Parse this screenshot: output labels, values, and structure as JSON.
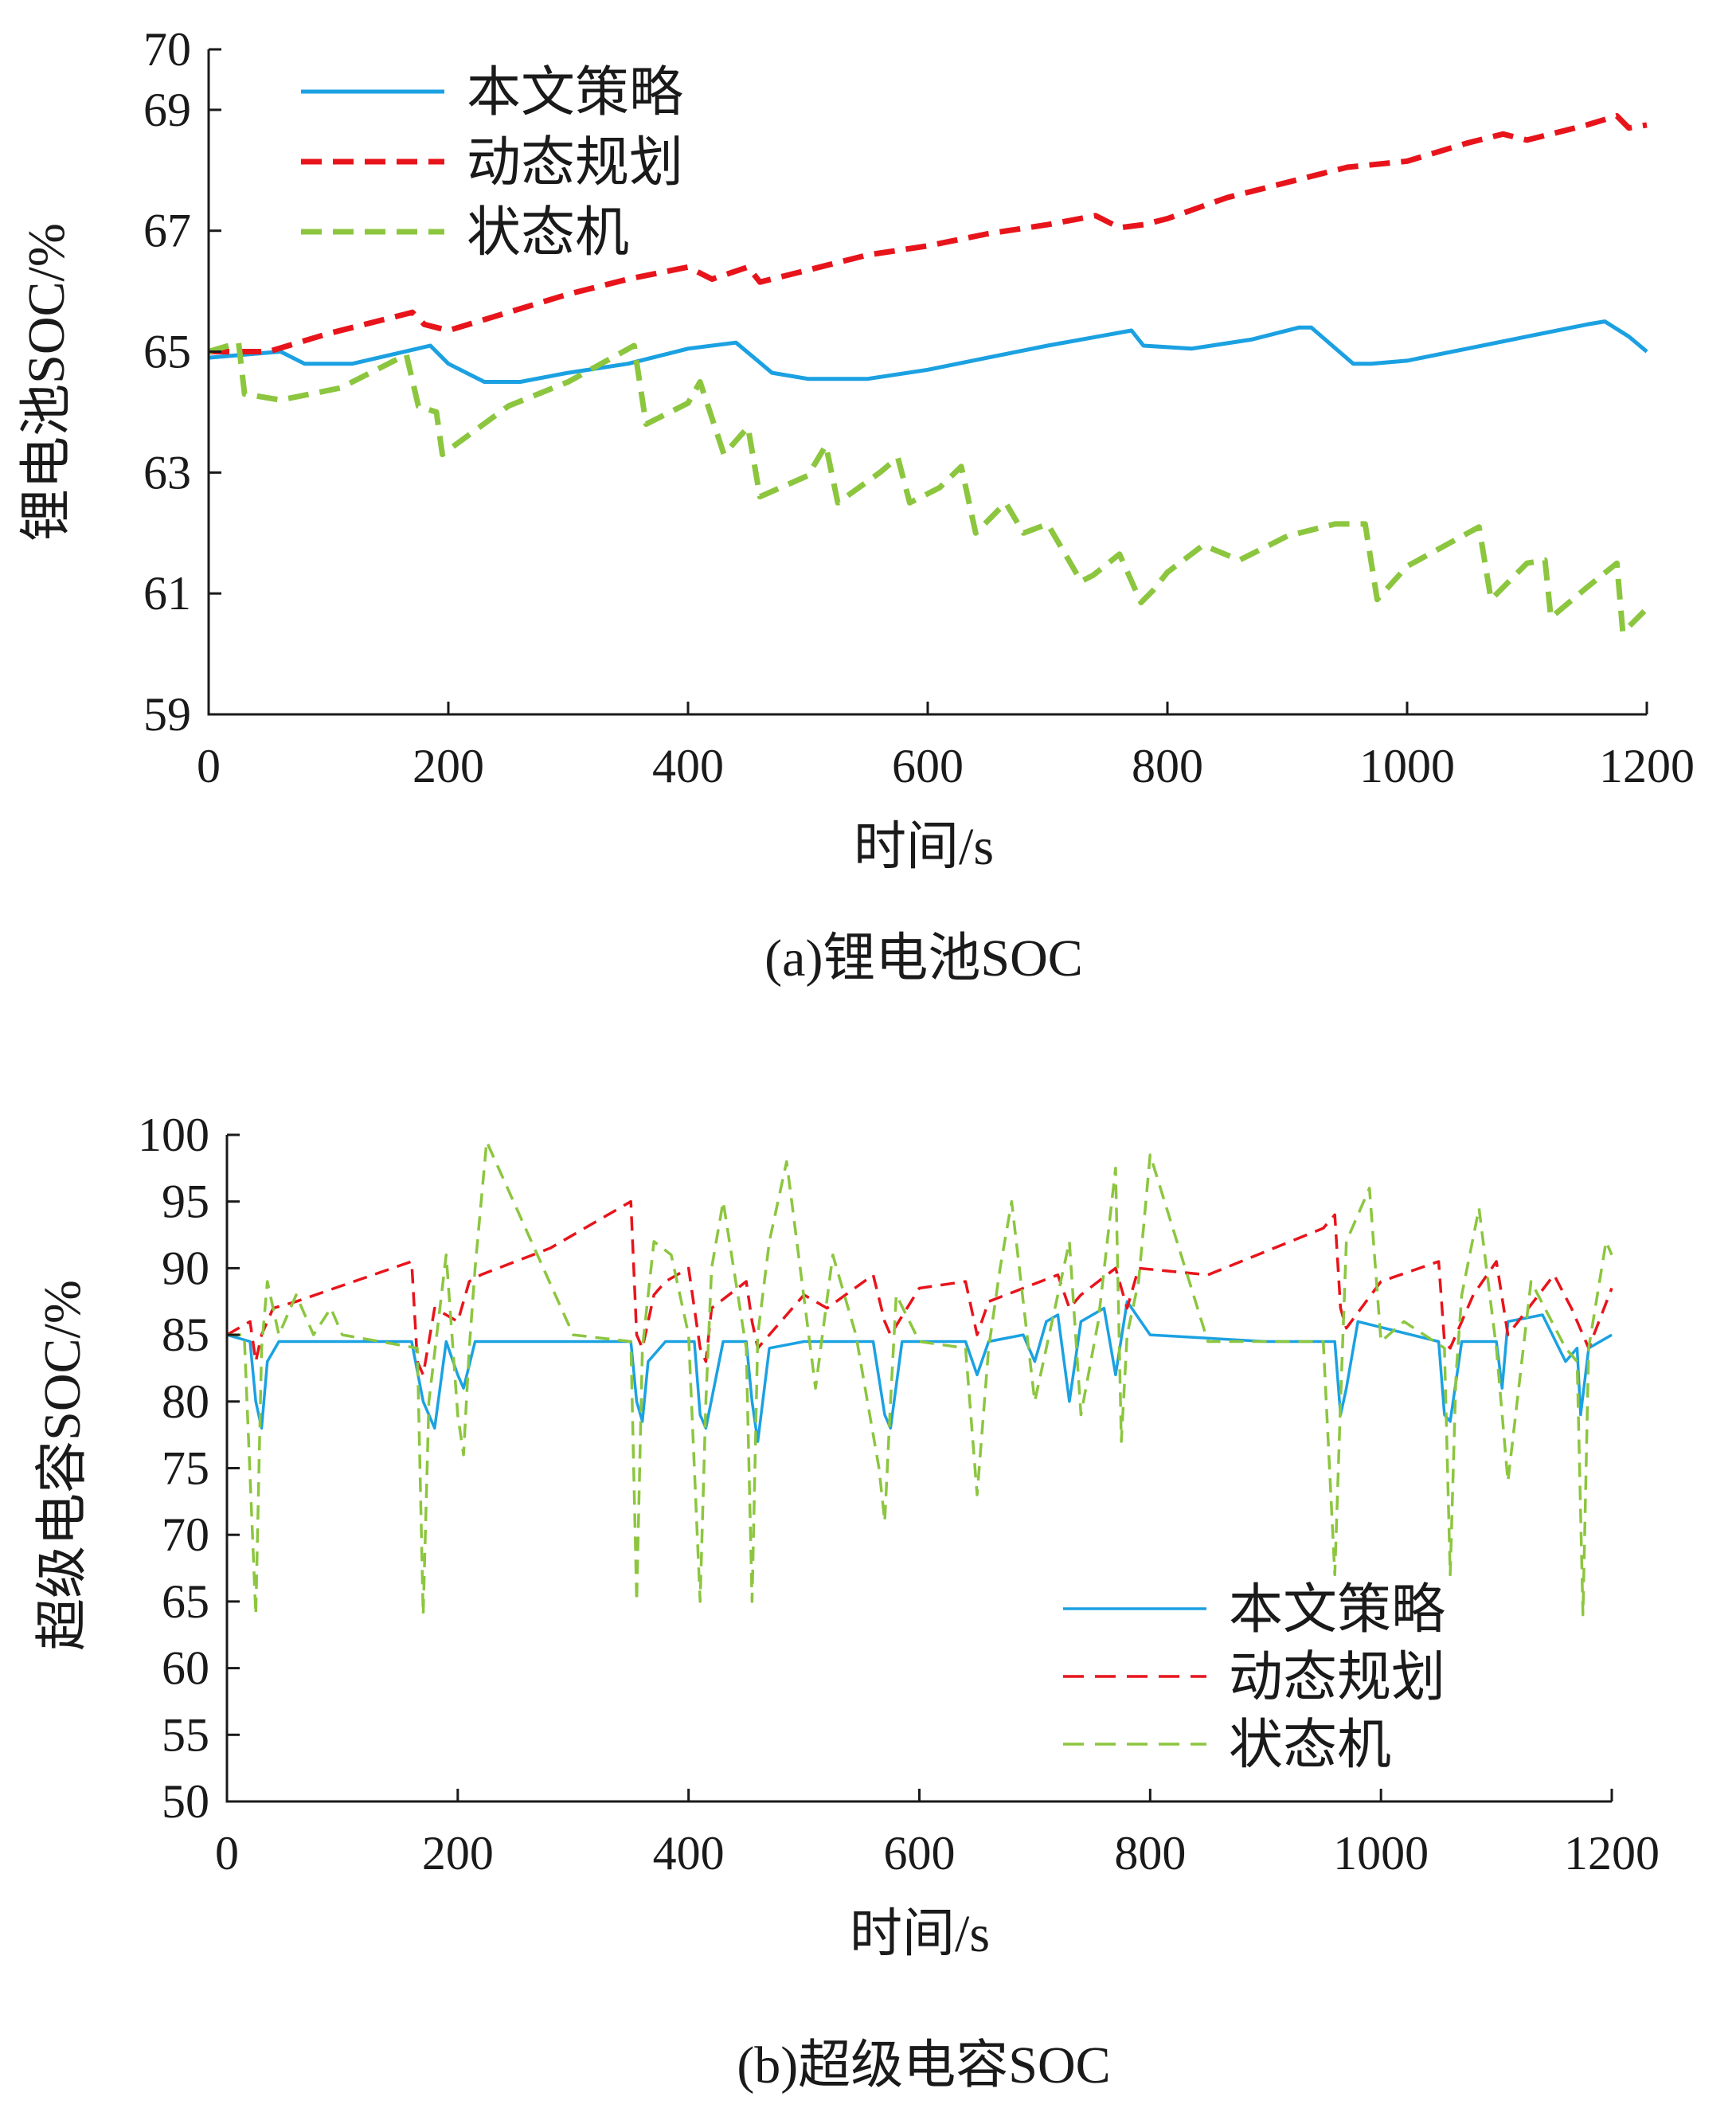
{
  "charts": [
    {
      "caption": "(a)锂电池SOC",
      "chart_data": {
        "type": "line",
        "xlabel": "时间/s",
        "ylabel": "锂电池SOC/%",
        "xlim": [
          0,
          1200
        ],
        "ylim": [
          59,
          70
        ],
        "xticks": [
          "0",
          "200",
          "400",
          "600",
          "800",
          "1000",
          "1200"
        ],
        "yticks": [
          "59",
          "61",
          "63",
          "65",
          "67",
          "69",
          "70"
        ],
        "legend_position": "top-left",
        "series": [
          {
            "name": "本文策略",
            "color": "#1ba1e2",
            "style": "solid",
            "x": [
              0,
              60,
              80,
              120,
              185,
              200,
              230,
              260,
              300,
              350,
              400,
              440,
              455,
              470,
              500,
              550,
              600,
              650,
              700,
              770,
              780,
              820,
              870,
              910,
              920,
              955,
              970,
              1000,
              1050,
              1100,
              1150,
              1165,
              1185,
              1200
            ],
            "y": [
              64.9,
              65.0,
              64.8,
              64.8,
              65.1,
              64.8,
              64.5,
              64.5,
              64.65,
              64.8,
              65.05,
              65.15,
              64.9,
              64.65,
              64.55,
              64.55,
              64.7,
              64.9,
              65.1,
              65.35,
              65.1,
              65.05,
              65.2,
              65.4,
              65.4,
              64.8,
              64.8,
              64.85,
              65.05,
              65.25,
              65.45,
              65.5,
              65.25,
              65.0
            ]
          },
          {
            "name": "动态规划",
            "color": "#e8141b",
            "style": "dashed",
            "x": [
              0,
              50,
              100,
              170,
              180,
              200,
              250,
              300,
              350,
              400,
              420,
              450,
              460,
              500,
              550,
              600,
              650,
              700,
              740,
              760,
              780,
              800,
              850,
              900,
              950,
              1000,
              1050,
              1080,
              1100,
              1150,
              1175,
              1185,
              1200
            ],
            "y": [
              65.0,
              65.0,
              65.3,
              65.65,
              65.45,
              65.35,
              65.65,
              65.95,
              66.2,
              66.4,
              66.2,
              66.4,
              66.15,
              66.35,
              66.6,
              66.75,
              66.95,
              67.1,
              67.25,
              67.05,
              67.1,
              67.2,
              67.55,
              67.8,
              68.05,
              68.15,
              68.45,
              68.6,
              68.5,
              68.75,
              68.9,
              68.7,
              68.75
            ]
          },
          {
            "name": "状态机",
            "color": "#8cc63f",
            "style": "dashed",
            "x": [
              0,
              25,
              30,
              60,
              110,
              165,
              175,
              190,
              195,
              250,
              300,
              355,
              365,
              400,
              410,
              430,
              450,
              460,
              500,
              515,
              525,
              560,
              575,
              585,
              610,
              628,
              640,
              665,
              680,
              700,
              728,
              738,
              760,
              778,
              788,
              800,
              830,
              860,
              900,
              940,
              965,
              975,
              1000,
              1060,
              1070,
              1100,
              1115,
              1120,
              1150,
              1175,
              1180,
              1200
            ],
            "y": [
              65.0,
              65.15,
              64.3,
              64.2,
              64.4,
              64.95,
              64.1,
              64.0,
              63.3,
              64.1,
              64.5,
              65.1,
              63.8,
              64.15,
              64.5,
              63.3,
              63.75,
              62.6,
              62.95,
              63.45,
              62.5,
              63.0,
              63.25,
              62.5,
              62.75,
              63.1,
              62.0,
              62.5,
              62.0,
              62.15,
              61.2,
              61.3,
              61.65,
              60.85,
              61.05,
              61.35,
              61.8,
              61.55,
              61.95,
              62.15,
              62.15,
              60.9,
              61.45,
              62.1,
              60.9,
              61.5,
              61.55,
              60.6,
              61.1,
              61.5,
              60.35,
              60.75
            ]
          }
        ]
      }
    },
    {
      "caption": "(b)超级电容SOC",
      "chart_data": {
        "type": "line",
        "xlabel": "时间/s",
        "ylabel": "超级电容SOC/%",
        "xlim": [
          0,
          1200
        ],
        "ylim": [
          50,
          100
        ],
        "xticks": [
          "0",
          "200",
          "400",
          "600",
          "800",
          "1000",
          "1200"
        ],
        "yticks": [
          "50",
          "55",
          "60",
          "65",
          "70",
          "75",
          "80",
          "85",
          "90",
          "95",
          "100"
        ],
        "legend_position": "bottom-right",
        "series": [
          {
            "name": "本文策略",
            "color": "#1ba1e2",
            "style": "solid",
            "x": [
              0,
              20,
              25,
              30,
              35,
              45,
              100,
              160,
              170,
              180,
              190,
              200,
              205,
              215,
              300,
              350,
              355,
              360,
              365,
              380,
              405,
              410,
              415,
              430,
              450,
              455,
              460,
              470,
              500,
              560,
              570,
              575,
              585,
              640,
              650,
              660,
              690,
              700,
              710,
              720,
              730,
              740,
              760,
              770,
              780,
              800,
              900,
              960,
              965,
              970,
              980,
              1050,
              1055,
              1060,
              1070,
              1100,
              1105,
              1110,
              1140,
              1160,
              1170,
              1173,
              1180,
              1200
            ],
            "y": [
              85,
              84.5,
              80,
              78,
              83,
              84.5,
              84.5,
              84.5,
              80,
              78,
              84.5,
              82,
              81,
              84.5,
              84.5,
              84.5,
              80,
              78.5,
              83,
              84.5,
              84.5,
              79,
              78,
              84.5,
              84.5,
              80,
              77,
              84,
              84.5,
              84.5,
              79,
              78,
              84.5,
              84.5,
              82,
              84.5,
              85,
              83,
              86,
              86.5,
              80,
              86,
              87,
              82,
              87.5,
              85,
              84.5,
              84.5,
              79,
              81,
              86,
              84.5,
              79,
              78.5,
              84.5,
              84.5,
              81,
              86,
              86.5,
              83,
              84,
              79,
              84,
              85
            ]
          },
          {
            "name": "动态规划",
            "color": "#e8141b",
            "style": "dashed",
            "x": [
              0,
              20,
              25,
              30,
              40,
              60,
              160,
              165,
              170,
              180,
              200,
              210,
              220,
              280,
              350,
              355,
              360,
              370,
              380,
              400,
              410,
              415,
              420,
              450,
              455,
              460,
              500,
              520,
              560,
              570,
              575,
              600,
              640,
              650,
              660,
              720,
              730,
              740,
              770,
              780,
              790,
              850,
              950,
              960,
              965,
              970,
              1000,
              1050,
              1055,
              1060,
              1080,
              1100,
              1110,
              1150,
              1165,
              1175,
              1180,
              1200
            ],
            "y": [
              85,
              86,
              83,
              85,
              87,
              87.5,
              90.5,
              83,
              82,
              87,
              86,
              89,
              89.5,
              91.5,
              95,
              85,
              84,
              88,
              89,
              90,
              84,
              83,
              87,
              89,
              86,
              84,
              88,
              87,
              89.5,
              86,
              85,
              88.5,
              89,
              85,
              87.5,
              89.5,
              87,
              88,
              90,
              87,
              90,
              89.5,
              93,
              94,
              87,
              85.5,
              89,
              90.5,
              84.5,
              84,
              88,
              90.5,
              85,
              89.5,
              87,
              85,
              84,
              88.5
            ]
          },
          {
            "name": "状态机",
            "color": "#8cc63f",
            "style": "dashed",
            "x": [
              0,
              15,
              25,
              30,
              35,
              45,
              60,
              75,
              90,
              100,
              165,
              170,
              175,
              190,
              200,
              205,
              210,
              215,
              225,
              300,
              350,
              355,
              360,
              370,
              385,
              400,
              410,
              415,
              420,
              430,
              450,
              455,
              460,
              470,
              485,
              510,
              525,
              545,
              555,
              565,
              570,
              575,
              580,
              600,
              640,
              650,
              660,
              670,
              680,
              700,
              710,
              730,
              740,
              755,
              770,
              775,
              780,
              790,
              800,
              850,
              950,
              960,
              965,
              970,
              990,
              1000,
              1020,
              1055,
              1060,
              1065,
              1070,
              1085,
              1100,
              1110,
              1130,
              1160,
              1170,
              1175,
              1180,
              1195,
              1200
            ],
            "y": [
              85,
              85,
              64,
              84,
              89,
              85,
              88,
              85,
              87,
              85,
              84,
              64,
              80,
              91,
              79,
              76,
              84,
              90,
              99.5,
              85,
              84.5,
              65,
              84,
              92,
              91,
              85,
              65,
              80,
              90,
              95,
              84,
              65,
              85,
              92,
              98,
              81,
              91,
              85,
              80,
              75,
              71,
              80,
              88,
              84.5,
              84,
              73,
              84,
              90,
              95,
              80,
              84,
              92,
              79,
              86,
              97.5,
              77,
              85,
              89,
              98.5,
              84.5,
              84.5,
              67,
              80,
              92,
              96,
              84.5,
              86,
              84,
              67,
              82,
              88,
              94.5,
              84,
              74,
              89,
              84,
              83,
              64,
              84,
              92,
              91
            ]
          }
        ]
      }
    }
  ]
}
